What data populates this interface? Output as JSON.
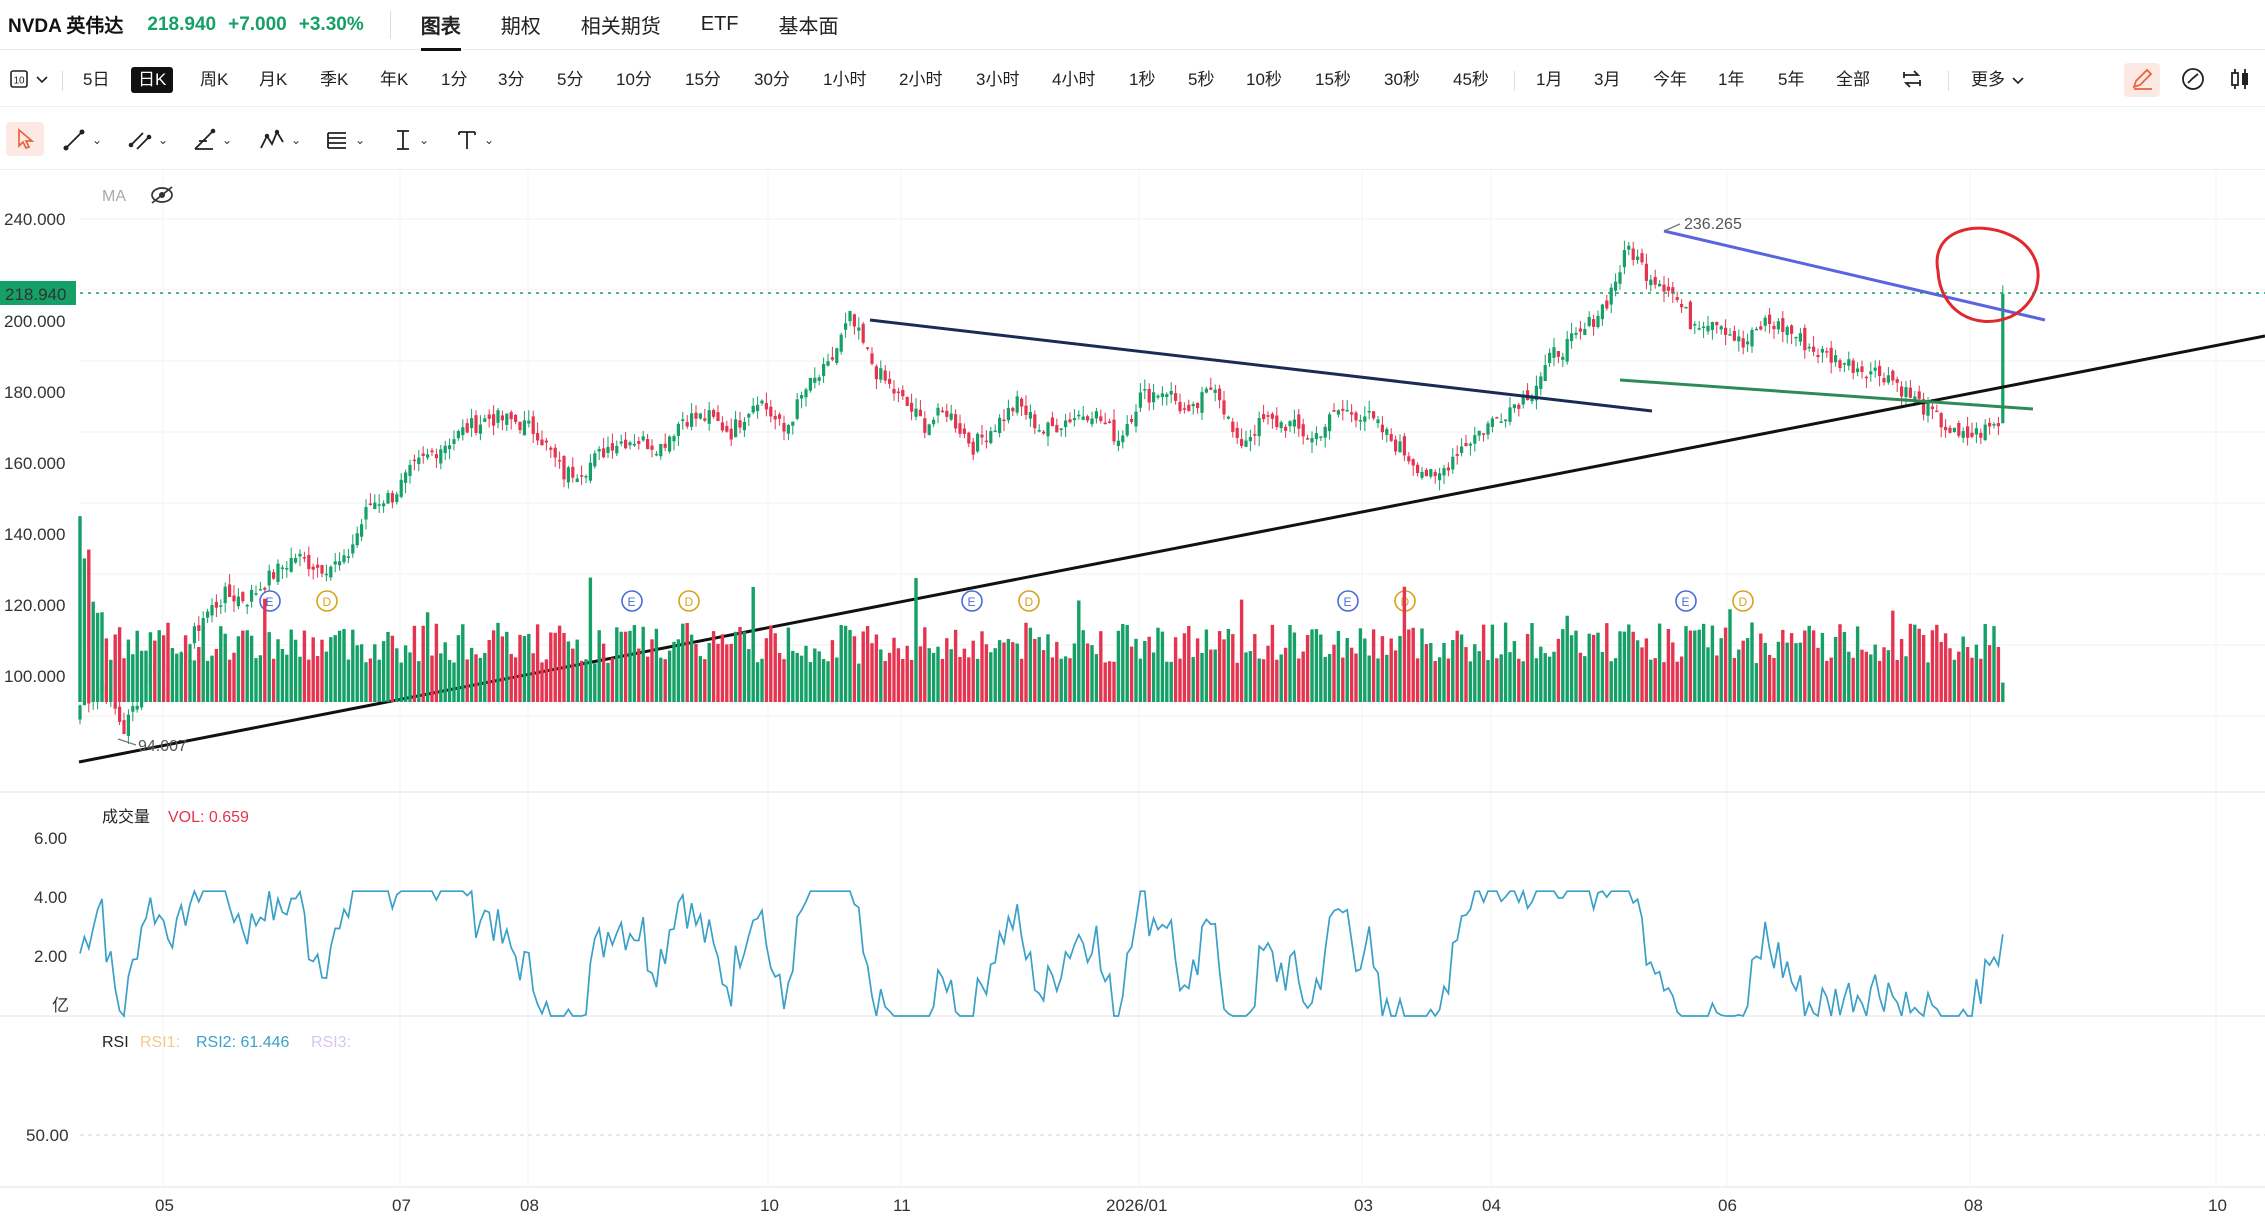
{
  "quote": {
    "ticker": "NVDA 英伟达",
    "price": "218.940",
    "change": "+7.000",
    "change_pct": "+3.30%",
    "up_color": "#14a066",
    "down_color": "#e5344f"
  },
  "tabs": [
    {
      "label": "图表",
      "active": true
    },
    {
      "label": "期权"
    },
    {
      "label": "相关期货"
    },
    {
      "label": "ETF"
    },
    {
      "label": "基本面"
    }
  ],
  "periods": [
    "5日",
    "日K",
    "周K",
    "月K",
    "季K",
    "年K",
    "1分",
    "3分",
    "5分",
    "10分",
    "15分",
    "30分",
    "1小时",
    "2小时",
    "3小时",
    "4小时",
    "1秒",
    "5秒",
    "10秒",
    "15秒",
    "30秒",
    "45秒",
    "1月",
    "3月",
    "今年",
    "1年",
    "5年",
    "全部"
  ],
  "active_period": "日K",
  "more_label": "更多",
  "main_panel": {
    "ma_label": "MA",
    "current_price_tag": "218.940",
    "high_label": "236.265",
    "low_label": "94.007",
    "y_ticks": [
      "240.000",
      "220.000",
      "200.000",
      "180.000",
      "160.000",
      "140.000",
      "120.000",
      "100.000"
    ],
    "event_markers": [
      "E",
      "D"
    ]
  },
  "volume_panel": {
    "title": "成交量",
    "vol_label": "VOL: 0.659",
    "y_ticks": [
      "6.00",
      "4.00",
      "2.00"
    ],
    "unit": "亿"
  },
  "rsi_panel": {
    "title": "RSI",
    "rsi1": "RSI1:",
    "rsi2": "RSI2: 61.446",
    "rsi3": "RSI3:",
    "y_tick": "50.00"
  },
  "x_ticks": [
    "05",
    "07",
    "08",
    "10",
    "11",
    "2026/01",
    "03",
    "04",
    "06",
    "08",
    "10"
  ],
  "chart_data": {
    "type": "candlestick",
    "last_close": 218.94,
    "period_high": 236.265,
    "period_low": 94.007,
    "y_range": [
      90,
      245
    ],
    "volume_y_range": [
      0,
      6.5
    ],
    "rsi_reference": 50,
    "rsi2_last": 61.446,
    "close_path": [
      [
        0,
        103
      ],
      [
        5,
        110
      ],
      [
        10,
        96
      ],
      [
        16,
        114
      ],
      [
        22,
        113
      ],
      [
        28,
        128
      ],
      [
        33,
        134
      ],
      [
        38,
        133
      ],
      [
        44,
        140
      ],
      [
        49,
        145
      ],
      [
        54,
        142
      ],
      [
        60,
        143
      ],
      [
        66,
        160
      ],
      [
        71,
        162
      ],
      [
        76,
        170
      ],
      [
        82,
        176
      ],
      [
        88,
        181
      ],
      [
        93,
        184
      ],
      [
        99,
        183
      ],
      [
        104,
        180
      ],
      [
        110,
        168
      ],
      [
        115,
        170
      ],
      [
        121,
        177
      ],
      [
        126,
        178
      ],
      [
        132,
        176
      ],
      [
        137,
        184
      ],
      [
        143,
        184
      ],
      [
        148,
        180
      ],
      [
        154,
        190
      ],
      [
        160,
        180
      ],
      [
        165,
        192
      ],
      [
        170,
        198
      ],
      [
        175,
        212
      ],
      [
        181,
        197
      ],
      [
        186,
        190
      ],
      [
        192,
        182
      ],
      [
        197,
        186
      ],
      [
        203,
        176
      ],
      [
        208,
        182
      ],
      [
        213,
        188
      ],
      [
        219,
        180
      ],
      [
        225,
        184
      ],
      [
        230,
        186
      ],
      [
        236,
        178
      ],
      [
        241,
        190
      ],
      [
        247,
        192
      ],
      [
        252,
        184
      ],
      [
        258,
        194
      ],
      [
        263,
        176
      ],
      [
        269,
        183
      ],
      [
        275,
        182
      ],
      [
        280,
        178
      ],
      [
        286,
        186
      ],
      [
        292,
        185
      ],
      [
        297,
        179
      ],
      [
        302,
        173
      ],
      [
        308,
        166
      ],
      [
        313,
        175
      ],
      [
        318,
        180
      ],
      [
        324,
        186
      ],
      [
        330,
        192
      ],
      [
        335,
        202
      ],
      [
        341,
        207
      ],
      [
        347,
        217
      ],
      [
        352,
        232
      ],
      [
        356,
        225
      ],
      [
        361,
        221
      ],
      [
        366,
        211
      ],
      [
        372,
        212
      ],
      [
        378,
        204
      ],
      [
        383,
        211
      ],
      [
        388,
        209
      ],
      [
        394,
        203
      ],
      [
        400,
        200
      ],
      [
        405,
        198
      ],
      [
        411,
        196
      ],
      [
        416,
        190
      ],
      [
        421,
        185
      ],
      [
        427,
        178
      ],
      [
        432,
        180
      ],
      [
        437,
        183
      ]
    ],
    "drawings": [
      {
        "type": "trendline",
        "color": "#111111"
      },
      {
        "type": "trendline",
        "color": "#1a2c55"
      },
      {
        "type": "trendline",
        "color": "#5a63e0"
      },
      {
        "type": "trendline",
        "color": "#2e8b57"
      },
      {
        "type": "ellipse",
        "color": "#e0282e"
      }
    ]
  }
}
